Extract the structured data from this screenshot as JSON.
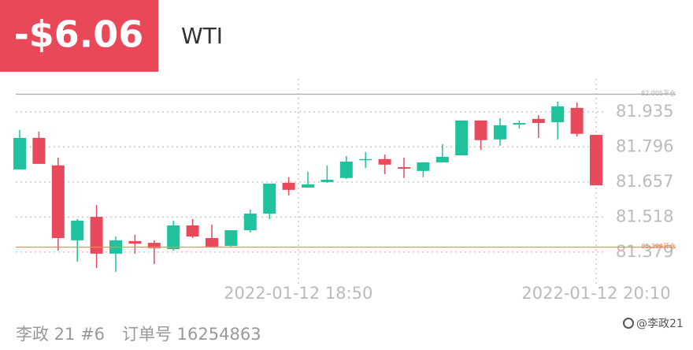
{
  "header": {
    "pnl": "-$6.06",
    "symbol": "WTI"
  },
  "chart_data": {
    "type": "candlestick",
    "categories": [
      null,
      null,
      null,
      null,
      null,
      null,
      null,
      null,
      null,
      null,
      null,
      null,
      null,
      null,
      null,
      null,
      null,
      null,
      null,
      null,
      null,
      null,
      null,
      null,
      null,
      null,
      null,
      null,
      null,
      null,
      null
    ],
    "open": [
      81.707,
      81.832,
      81.723,
      81.426,
      81.519,
      81.373,
      81.423,
      81.416,
      81.391,
      81.485,
      81.435,
      81.404,
      81.466,
      81.532,
      81.654,
      81.635,
      81.657,
      81.673,
      81.744,
      81.748,
      81.716,
      81.701,
      81.735,
      81.763,
      81.901,
      81.826,
      81.885,
      81.907,
      81.894,
      81.951,
      81.844
    ],
    "high": [
      81.863,
      81.857,
      81.754,
      81.51,
      81.566,
      81.441,
      81.448,
      81.426,
      81.504,
      81.51,
      81.488,
      81.466,
      81.548,
      81.651,
      81.676,
      81.698,
      81.723,
      81.76,
      81.776,
      81.766,
      81.754,
      81.735,
      81.807,
      81.901,
      81.901,
      81.91,
      81.901,
      81.922,
      81.976,
      81.972,
      81.844
    ],
    "low": [
      81.707,
      81.729,
      81.385,
      81.341,
      81.316,
      81.301,
      81.373,
      81.332,
      81.385,
      81.435,
      81.401,
      81.401,
      81.457,
      81.51,
      81.604,
      81.635,
      81.654,
      81.669,
      81.713,
      81.688,
      81.673,
      81.676,
      81.735,
      81.763,
      81.785,
      81.801,
      81.869,
      81.832,
      81.826,
      81.838,
      81.644
    ],
    "close": [
      81.832,
      81.729,
      81.435,
      81.504,
      81.373,
      81.426,
      81.413,
      81.395,
      81.485,
      81.441,
      81.401,
      81.466,
      81.532,
      81.651,
      81.626,
      81.648,
      81.666,
      81.738,
      81.748,
      81.726,
      81.71,
      81.735,
      81.757,
      81.901,
      81.823,
      81.882,
      81.891,
      81.891,
      81.957,
      81.848,
      81.644
    ],
    "up_color": "#1fc29d",
    "down_color": "#e8495b",
    "ylim": [
      81.285,
      82.066
    ],
    "yticks": [
      81.379,
      81.518,
      81.657,
      81.796,
      81.935
    ],
    "xticks": [
      {
        "value": 14.5,
        "label": "2022-01-12 18:50"
      },
      {
        "value": 30,
        "label": "2022-01-12 20:10"
      }
    ],
    "grid": true,
    "reference_lines": [
      {
        "value": 82.005,
        "label": "82.005平仓",
        "color": "#aaaaaa"
      },
      {
        "value": 81.399,
        "label": "81.399开仓",
        "color": "#f08a5d"
      }
    ]
  },
  "footer": {
    "account": "李政 21 #6",
    "order": "订单号 16254863",
    "watermark": "@李政21"
  }
}
